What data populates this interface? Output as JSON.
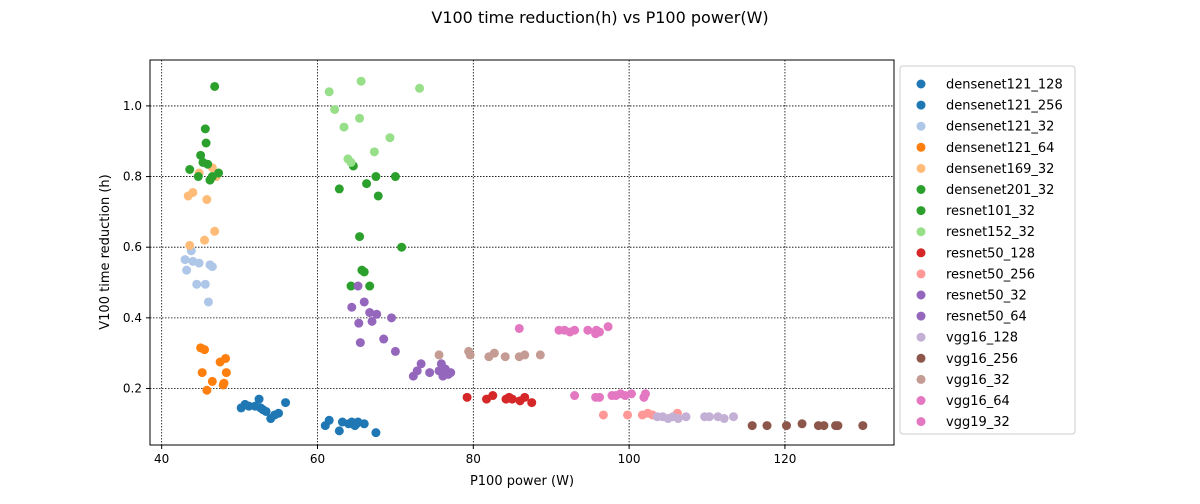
{
  "chart_data": {
    "type": "scatter",
    "title": "V100 time reduction(h) vs P100 power(W)",
    "xlabel": "P100 power (W)",
    "ylabel": "V100 time reduction (h)",
    "xlim": [
      38.5,
      134
    ],
    "ylim": [
      0.04,
      1.13
    ],
    "xticks": [
      40,
      60,
      80,
      100,
      120
    ],
    "yticks": [
      0.2,
      0.4,
      0.6,
      0.8,
      1.0
    ],
    "xtick_labels": [
      "40",
      "60",
      "80",
      "100",
      "120"
    ],
    "ytick_labels": [
      "0.2",
      "0.4",
      "0.6",
      "0.8",
      "1.0"
    ],
    "grid": true,
    "legend_position": "right, outside plot area",
    "series": [
      {
        "name": "densenet121_128",
        "color": "#1f77b4",
        "points": [
          [
            50.2,
            0.145
          ],
          [
            50.7,
            0.155
          ],
          [
            51.2,
            0.15
          ],
          [
            52.0,
            0.15
          ],
          [
            52.5,
            0.17
          ],
          [
            52.7,
            0.145
          ],
          [
            53.0,
            0.14
          ],
          [
            53.4,
            0.135
          ],
          [
            54.0,
            0.115
          ],
          [
            54.5,
            0.125
          ],
          [
            55.0,
            0.13
          ],
          [
            55.9,
            0.16
          ]
        ]
      },
      {
        "name": "densenet121_256",
        "color": "#1f77b4",
        "points": [
          [
            61.0,
            0.095
          ],
          [
            61.5,
            0.11
          ],
          [
            62.8,
            0.08
          ],
          [
            63.2,
            0.105
          ],
          [
            64.0,
            0.1
          ],
          [
            64.4,
            0.105
          ],
          [
            64.8,
            0.095
          ],
          [
            65.0,
            0.1
          ],
          [
            65.2,
            0.105
          ],
          [
            66.0,
            0.1
          ],
          [
            67.5,
            0.075
          ]
        ]
      },
      {
        "name": "densenet121_32",
        "color": "#aec7e8",
        "points": [
          [
            43.0,
            0.565
          ],
          [
            43.2,
            0.535
          ],
          [
            43.8,
            0.59
          ],
          [
            44.0,
            0.56
          ],
          [
            44.5,
            0.495
          ],
          [
            44.8,
            0.555
          ],
          [
            45.6,
            0.495
          ],
          [
            46.0,
            0.445
          ],
          [
            46.2,
            0.55
          ],
          [
            46.5,
            0.545
          ]
        ]
      },
      {
        "name": "densenet121_64",
        "color": "#ff7f0e",
        "points": [
          [
            45.0,
            0.315
          ],
          [
            45.2,
            0.245
          ],
          [
            45.5,
            0.31
          ],
          [
            45.8,
            0.195
          ],
          [
            46.5,
            0.22
          ],
          [
            47.5,
            0.275
          ],
          [
            47.9,
            0.21
          ],
          [
            48.0,
            0.215
          ],
          [
            48.2,
            0.285
          ],
          [
            48.3,
            0.245
          ]
        ]
      },
      {
        "name": "densenet169_32",
        "color": "#ffbb78",
        "points": [
          [
            43.4,
            0.745
          ],
          [
            43.6,
            0.605
          ],
          [
            44.0,
            0.755
          ],
          [
            44.8,
            0.81
          ],
          [
            45.5,
            0.62
          ],
          [
            45.8,
            0.735
          ],
          [
            46.5,
            0.825
          ],
          [
            46.8,
            0.645
          ],
          [
            47.0,
            0.8
          ]
        ]
      },
      {
        "name": "densenet201_32",
        "color": "#2ca02c",
        "points": [
          [
            43.6,
            0.82
          ],
          [
            44.7,
            0.8
          ],
          [
            45.0,
            0.86
          ],
          [
            45.3,
            0.84
          ],
          [
            45.6,
            0.935
          ],
          [
            45.7,
            0.895
          ],
          [
            45.9,
            0.835
          ],
          [
            46.2,
            0.79
          ],
          [
            46.5,
            0.8
          ],
          [
            46.8,
            1.055
          ],
          [
            47.3,
            0.81
          ]
        ]
      },
      {
        "name": "resnet101_32",
        "color": "#2ca02c",
        "points": [
          [
            62.8,
            0.765
          ],
          [
            64.3,
            0.49
          ],
          [
            64.6,
            0.83
          ],
          [
            65.4,
            0.63
          ],
          [
            65.7,
            0.535
          ],
          [
            66.0,
            0.53
          ],
          [
            66.3,
            0.78
          ],
          [
            66.7,
            0.49
          ],
          [
            67.5,
            0.8
          ],
          [
            67.8,
            0.745
          ],
          [
            70.0,
            0.8
          ],
          [
            70.8,
            0.6
          ]
        ]
      },
      {
        "name": "resnet152_32",
        "color": "#98df8a",
        "points": [
          [
            61.5,
            1.04
          ],
          [
            62.2,
            0.99
          ],
          [
            63.4,
            0.94
          ],
          [
            63.9,
            0.85
          ],
          [
            64.3,
            0.84
          ],
          [
            65.4,
            0.965
          ],
          [
            65.6,
            1.07
          ],
          [
            67.3,
            0.87
          ],
          [
            69.3,
            0.91
          ],
          [
            73.1,
            1.05
          ]
        ]
      },
      {
        "name": "resnet50_128",
        "color": "#d62728",
        "points": [
          [
            79.2,
            0.175
          ],
          [
            81.7,
            0.17
          ],
          [
            82.5,
            0.18
          ],
          [
            84.2,
            0.17
          ],
          [
            84.6,
            0.175
          ],
          [
            85.0,
            0.17
          ],
          [
            86.0,
            0.165
          ],
          [
            86.6,
            0.175
          ],
          [
            87.5,
            0.16
          ]
        ]
      },
      {
        "name": "resnet50_256",
        "color": "#ff9896",
        "points": [
          [
            96.7,
            0.125
          ],
          [
            99.8,
            0.125
          ],
          [
            101.7,
            0.125
          ],
          [
            102.4,
            0.13
          ],
          [
            103.0,
            0.125
          ],
          [
            106.2,
            0.13
          ]
        ]
      },
      {
        "name": "resnet50_32",
        "color": "#9467bd",
        "points": [
          [
            64.4,
            0.43
          ],
          [
            65.2,
            0.49
          ],
          [
            65.3,
            0.385
          ],
          [
            65.5,
            0.33
          ],
          [
            66.0,
            0.445
          ],
          [
            66.7,
            0.415
          ],
          [
            67.0,
            0.39
          ],
          [
            67.6,
            0.41
          ],
          [
            68.5,
            0.34
          ],
          [
            69.5,
            0.4
          ],
          [
            70.0,
            0.305
          ]
        ]
      },
      {
        "name": "resnet50_64",
        "color": "#9467bd",
        "points": [
          [
            72.3,
            0.235
          ],
          [
            72.8,
            0.25
          ],
          [
            73.3,
            0.27
          ],
          [
            74.4,
            0.245
          ],
          [
            75.6,
            0.25
          ],
          [
            75.9,
            0.27
          ],
          [
            76.1,
            0.235
          ],
          [
            76.4,
            0.255
          ],
          [
            76.8,
            0.24
          ],
          [
            77.1,
            0.245
          ]
        ]
      },
      {
        "name": "vgg16_128",
        "color": "#c5b0d5",
        "points": [
          [
            103.6,
            0.12
          ],
          [
            104.3,
            0.12
          ],
          [
            105.0,
            0.115
          ],
          [
            105.6,
            0.12
          ],
          [
            106.3,
            0.115
          ],
          [
            107.3,
            0.12
          ],
          [
            109.7,
            0.12
          ],
          [
            110.3,
            0.12
          ],
          [
            111.4,
            0.12
          ],
          [
            112.2,
            0.115
          ],
          [
            113.4,
            0.12
          ]
        ]
      },
      {
        "name": "vgg16_256",
        "color": "#8c564b",
        "points": [
          [
            115.8,
            0.095
          ],
          [
            117.7,
            0.095
          ],
          [
            120.2,
            0.095
          ],
          [
            122.2,
            0.1
          ],
          [
            124.3,
            0.095
          ],
          [
            125.0,
            0.095
          ],
          [
            126.5,
            0.095
          ],
          [
            126.8,
            0.095
          ],
          [
            130.0,
            0.095
          ]
        ]
      },
      {
        "name": "vgg16_32",
        "color": "#c49c94",
        "points": [
          [
            75.6,
            0.295
          ],
          [
            79.4,
            0.305
          ],
          [
            79.6,
            0.295
          ],
          [
            82.0,
            0.29
          ],
          [
            82.7,
            0.3
          ],
          [
            84.1,
            0.29
          ],
          [
            85.9,
            0.29
          ],
          [
            86.6,
            0.295
          ],
          [
            88.6,
            0.295
          ]
        ]
      },
      {
        "name": "vgg16_64",
        "color": "#e377c2",
        "points": [
          [
            85.9,
            0.37
          ],
          [
            91.0,
            0.365
          ],
          [
            91.7,
            0.365
          ],
          [
            92.4,
            0.36
          ],
          [
            93.0,
            0.365
          ],
          [
            94.7,
            0.365
          ],
          [
            95.7,
            0.355
          ],
          [
            95.8,
            0.365
          ],
          [
            96.2,
            0.36
          ],
          [
            97.3,
            0.375
          ]
        ]
      },
      {
        "name": "vgg19_32",
        "color": "#e377c2",
        "points": [
          [
            93.0,
            0.18
          ],
          [
            95.7,
            0.175
          ],
          [
            96.2,
            0.175
          ],
          [
            97.8,
            0.18
          ],
          [
            98.3,
            0.18
          ],
          [
            98.9,
            0.185
          ],
          [
            99.5,
            0.18
          ],
          [
            100.3,
            0.185
          ],
          [
            101.9,
            0.175
          ],
          [
            102.1,
            0.185
          ]
        ]
      }
    ]
  }
}
